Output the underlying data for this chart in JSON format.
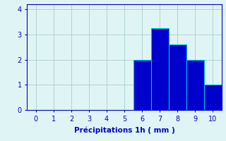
{
  "categories": [
    6,
    7,
    8,
    9,
    10
  ],
  "values": [
    2.0,
    3.25,
    2.6,
    2.0,
    1.0
  ],
  "bar_color": "#0000cc",
  "bar_edge_color": "#00bbee",
  "background_color": "#dff5f5",
  "xlabel": "Précipitations 1h ( mm )",
  "xlabel_color": "#0000cc",
  "tick_color": "#0000cc",
  "grid_color": "#aacccc",
  "xlim": [
    -0.5,
    10.5
  ],
  "ylim": [
    0,
    4.2
  ],
  "xticks": [
    0,
    1,
    2,
    3,
    4,
    5,
    6,
    7,
    8,
    9,
    10
  ],
  "yticks": [
    0,
    1,
    2,
    3,
    4
  ],
  "bar_width": 1.0
}
